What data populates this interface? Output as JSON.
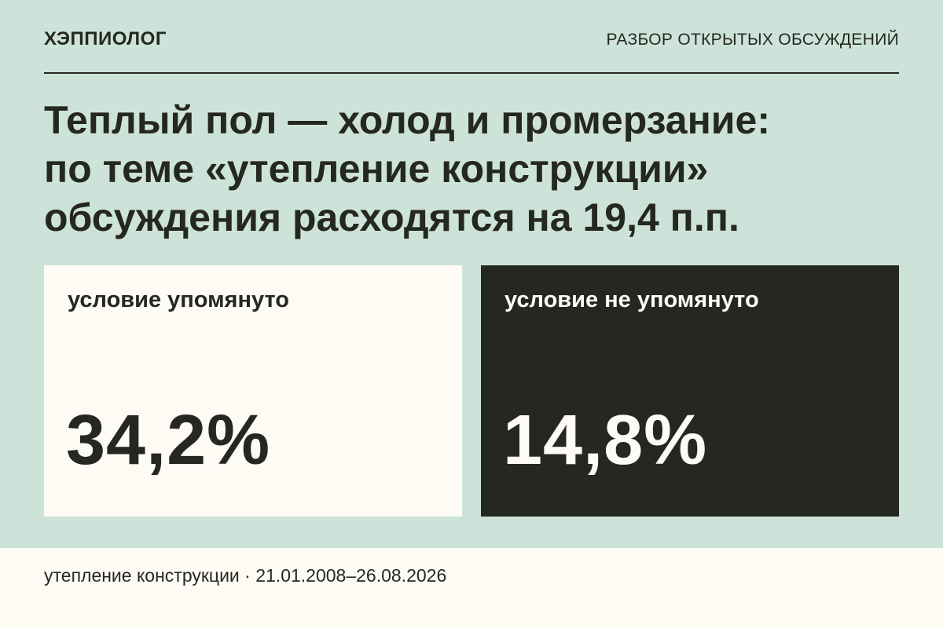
{
  "header": {
    "brand": "ХЭППИОЛОГ",
    "section_label": "РАЗБОР ОТКРЫТЫХ ОБСУЖДЕНИЙ"
  },
  "headline": {
    "lines": [
      "Теплый пол — холод и промерзание:",
      "по теме «утепление конструкции»",
      "обсуждения расходятся на 19,4 п.п."
    ]
  },
  "cards": [
    {
      "label": "условие упомянуто",
      "value": "34,2%"
    },
    {
      "label": "условие не упомянуто",
      "value": "14,8%"
    }
  ],
  "footer": {
    "text": "утепление конструкции · 21.01.2008–26.08.2026"
  },
  "colors": {
    "background": "#cde3da",
    "ink": "#252721",
    "paper": "#fdfbf3"
  }
}
